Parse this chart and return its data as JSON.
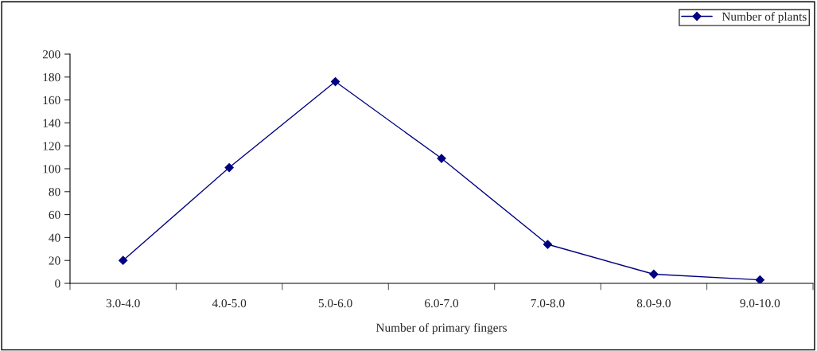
{
  "chart_data": {
    "type": "line",
    "xlabel": "Number of primary fingers",
    "categories": [
      "3.0-4.0",
      "4.0-5.0",
      "5.0-6.0",
      "6.0-7.0",
      "7.0-8.0",
      "8.0-9.0",
      "9.0-10.0"
    ],
    "series": [
      {
        "name": "Number of plants",
        "color": "#000080",
        "values": [
          20,
          101,
          176,
          109,
          34,
          8,
          3
        ]
      }
    ],
    "ylim": [
      0,
      200
    ],
    "yticks": [
      0,
      20,
      40,
      60,
      80,
      100,
      120,
      140,
      160,
      180,
      200
    ],
    "marker": "diamond",
    "legend": "top right",
    "grid": false
  }
}
